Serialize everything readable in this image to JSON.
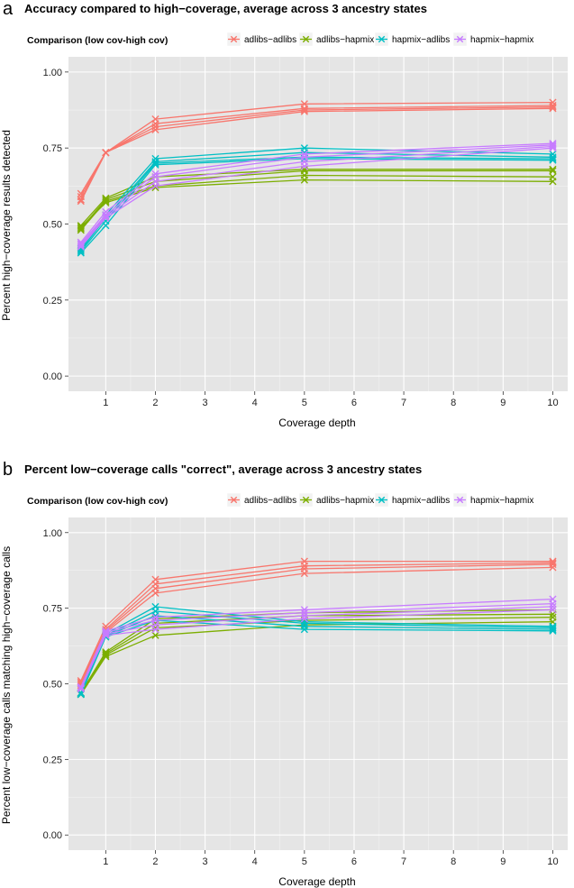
{
  "chart_data": [
    {
      "type": "line",
      "panel": "a",
      "title": "Accuracy compared to high−coverage, average across 3 ancestry states",
      "xlabel": "Coverage depth",
      "ylabel": "Percent high−coverage results detected",
      "legend_title": "Comparison (low cov-high cov)",
      "legend_placement": "top",
      "xlim": [
        0.25,
        10.3
      ],
      "ylim": [
        -0.05,
        1.05
      ],
      "xticks": [
        1,
        2,
        3,
        4,
        5,
        6,
        7,
        8,
        9,
        10
      ],
      "yticks": [
        0.0,
        0.25,
        0.5,
        0.75,
        1.0
      ],
      "ytick_labels": [
        "0.00",
        "0.25",
        "0.50",
        "0.75",
        "1.00"
      ],
      "grid": true,
      "x": [
        0.5,
        1,
        2,
        5,
        10
      ],
      "series": [
        {
          "name": "adlibs−adlibs",
          "group": "adlibs−adlibs",
          "color": "#F8766D",
          "values": [
            0.6,
            0.735,
            0.845,
            0.895,
            0.9
          ]
        },
        {
          "name": "adlibs−adlibs",
          "group": "adlibs−adlibs",
          "color": "#F8766D",
          "values": [
            0.59,
            0.735,
            0.83,
            0.88,
            0.89
          ]
        },
        {
          "name": "adlibs−adlibs",
          "group": "adlibs−adlibs",
          "color": "#F8766D",
          "values": [
            0.58,
            0.735,
            0.82,
            0.875,
            0.885
          ]
        },
        {
          "name": "adlibs−adlibs",
          "group": "adlibs−adlibs",
          "color": "#F8766D",
          "values": [
            0.575,
            0.735,
            0.81,
            0.87,
            0.88
          ]
        },
        {
          "name": "adlibs−hapmix",
          "group": "adlibs−hapmix",
          "color": "#7CAE00",
          "values": [
            0.495,
            0.585,
            0.655,
            0.68,
            0.68
          ]
        },
        {
          "name": "adlibs−hapmix",
          "group": "adlibs−hapmix",
          "color": "#7CAE00",
          "values": [
            0.485,
            0.58,
            0.64,
            0.675,
            0.675
          ]
        },
        {
          "name": "adlibs−hapmix",
          "group": "adlibs−hapmix",
          "color": "#7CAE00",
          "values": [
            0.48,
            0.575,
            0.625,
            0.66,
            0.655
          ]
        },
        {
          "name": "adlibs−hapmix",
          "group": "adlibs−hapmix",
          "color": "#7CAE00",
          "values": [
            0.49,
            0.57,
            0.62,
            0.645,
            0.64
          ]
        },
        {
          "name": "hapmix−adlibs",
          "group": "hapmix−adlibs",
          "color": "#00BFC4",
          "values": [
            0.42,
            0.53,
            0.715,
            0.75,
            0.73
          ]
        },
        {
          "name": "hapmix−adlibs",
          "group": "hapmix−adlibs",
          "color": "#00BFC4",
          "values": [
            0.415,
            0.52,
            0.705,
            0.735,
            0.72
          ]
        },
        {
          "name": "hapmix−adlibs",
          "group": "hapmix−adlibs",
          "color": "#00BFC4",
          "values": [
            0.41,
            0.51,
            0.7,
            0.72,
            0.715
          ]
        },
        {
          "name": "hapmix−adlibs",
          "group": "hapmix−adlibs",
          "color": "#00BFC4",
          "values": [
            0.405,
            0.495,
            0.695,
            0.715,
            0.71
          ]
        },
        {
          "name": "hapmix−hapmix",
          "group": "hapmix−hapmix",
          "color": "#C77CFF",
          "values": [
            0.44,
            0.54,
            0.665,
            0.73,
            0.765
          ]
        },
        {
          "name": "hapmix−hapmix",
          "group": "hapmix−hapmix",
          "color": "#C77CFF",
          "values": [
            0.435,
            0.53,
            0.655,
            0.72,
            0.76
          ]
        },
        {
          "name": "hapmix−hapmix",
          "group": "hapmix−hapmix",
          "color": "#C77CFF",
          "values": [
            0.43,
            0.525,
            0.64,
            0.705,
            0.755
          ]
        },
        {
          "name": "hapmix−hapmix",
          "group": "hapmix−hapmix",
          "color": "#C77CFF",
          "values": [
            0.425,
            0.52,
            0.625,
            0.69,
            0.75
          ]
        }
      ]
    },
    {
      "type": "line",
      "panel": "b",
      "title": "Percent low−coverage calls \"correct\", average across 3 ancestry states",
      "xlabel": "Coverage depth",
      "ylabel": "Percent low−coverage calls matching high−coverage calls",
      "legend_title": "Comparison (low cov-high cov)",
      "legend_placement": "top",
      "xlim": [
        0.25,
        10.3
      ],
      "ylim": [
        -0.05,
        1.05
      ],
      "xticks": [
        1,
        2,
        3,
        4,
        5,
        6,
        7,
        8,
        9,
        10
      ],
      "yticks": [
        0.0,
        0.25,
        0.5,
        0.75,
        1.0
      ],
      "ytick_labels": [
        "0.00",
        "0.25",
        "0.50",
        "0.75",
        "1.00"
      ],
      "grid": true,
      "x": [
        0.5,
        1,
        2,
        5,
        10
      ],
      "series": [
        {
          "name": "adlibs−adlibs",
          "group": "adlibs−adlibs",
          "color": "#F8766D",
          "values": [
            0.51,
            0.69,
            0.845,
            0.905,
            0.905
          ]
        },
        {
          "name": "adlibs−adlibs",
          "group": "adlibs−adlibs",
          "color": "#F8766D",
          "values": [
            0.505,
            0.68,
            0.83,
            0.89,
            0.9
          ]
        },
        {
          "name": "adlibs−adlibs",
          "group": "adlibs−adlibs",
          "color": "#F8766D",
          "values": [
            0.5,
            0.675,
            0.815,
            0.88,
            0.895
          ]
        },
        {
          "name": "adlibs−adlibs",
          "group": "adlibs−adlibs",
          "color": "#F8766D",
          "values": [
            0.495,
            0.67,
            0.8,
            0.865,
            0.885
          ]
        },
        {
          "name": "adlibs−hapmix",
          "group": "adlibs−hapmix",
          "color": "#7CAE00",
          "values": [
            0.47,
            0.605,
            0.715,
            0.735,
            0.745
          ]
        },
        {
          "name": "adlibs−hapmix",
          "group": "adlibs−hapmix",
          "color": "#7CAE00",
          "values": [
            0.468,
            0.6,
            0.7,
            0.725,
            0.73
          ]
        },
        {
          "name": "adlibs−hapmix",
          "group": "adlibs−hapmix",
          "color": "#7CAE00",
          "values": [
            0.466,
            0.595,
            0.685,
            0.71,
            0.72
          ]
        },
        {
          "name": "adlibs−hapmix",
          "group": "adlibs−hapmix",
          "color": "#7CAE00",
          "values": [
            0.465,
            0.59,
            0.66,
            0.695,
            0.705
          ]
        },
        {
          "name": "hapmix−adlibs",
          "group": "hapmix−adlibs",
          "color": "#00BFC4",
          "values": [
            0.47,
            0.665,
            0.755,
            0.705,
            0.69
          ]
        },
        {
          "name": "hapmix−adlibs",
          "group": "hapmix−adlibs",
          "color": "#00BFC4",
          "values": [
            0.468,
            0.66,
            0.74,
            0.7,
            0.685
          ]
        },
        {
          "name": "hapmix−adlibs",
          "group": "hapmix−adlibs",
          "color": "#00BFC4",
          "values": [
            0.466,
            0.658,
            0.725,
            0.69,
            0.68
          ]
        },
        {
          "name": "hapmix−adlibs",
          "group": "hapmix−adlibs",
          "color": "#00BFC4",
          "values": [
            0.465,
            0.655,
            0.71,
            0.68,
            0.675
          ]
        },
        {
          "name": "hapmix−hapmix",
          "group": "hapmix−hapmix",
          "color": "#C77CFF",
          "values": [
            0.49,
            0.675,
            0.72,
            0.745,
            0.78
          ]
        },
        {
          "name": "hapmix−hapmix",
          "group": "hapmix−hapmix",
          "color": "#C77CFF",
          "values": [
            0.488,
            0.67,
            0.71,
            0.735,
            0.765
          ]
        },
        {
          "name": "hapmix−hapmix",
          "group": "hapmix−hapmix",
          "color": "#C77CFF",
          "values": [
            0.485,
            0.665,
            0.695,
            0.725,
            0.755
          ]
        },
        {
          "name": "hapmix−hapmix",
          "group": "hapmix−hapmix",
          "color": "#C77CFF",
          "values": [
            0.483,
            0.66,
            0.68,
            0.715,
            0.745
          ]
        }
      ]
    }
  ],
  "panels": [
    {
      "letter": "a",
      "title": "Accuracy compared to high−coverage, average across 3 ancestry states",
      "legend_title": "Comparison (low cov-high cov)",
      "xlabel": "Coverage depth",
      "ylabel": "Percent high−coverage results detected"
    },
    {
      "letter": "b",
      "title": "Percent low−coverage calls \"correct\", average across 3 ancestry states",
      "legend_title": "Comparison (low cov-high cov)",
      "xlabel": "Coverage depth",
      "ylabel": "Percent low−coverage calls matching high−coverage calls"
    }
  ],
  "legend": [
    {
      "label": "adlibs−adlibs",
      "color": "#F8766D"
    },
    {
      "label": "adlibs−hapmix",
      "color": "#7CAE00"
    },
    {
      "label": "hapmix−adlibs",
      "color": "#00BFC4"
    },
    {
      "label": "hapmix−hapmix",
      "color": "#C77CFF"
    }
  ],
  "colors": {
    "panel_bg": "#E5E5E5",
    "grid_major": "#FFFFFF",
    "grid_minor": "#F2F2F2"
  }
}
